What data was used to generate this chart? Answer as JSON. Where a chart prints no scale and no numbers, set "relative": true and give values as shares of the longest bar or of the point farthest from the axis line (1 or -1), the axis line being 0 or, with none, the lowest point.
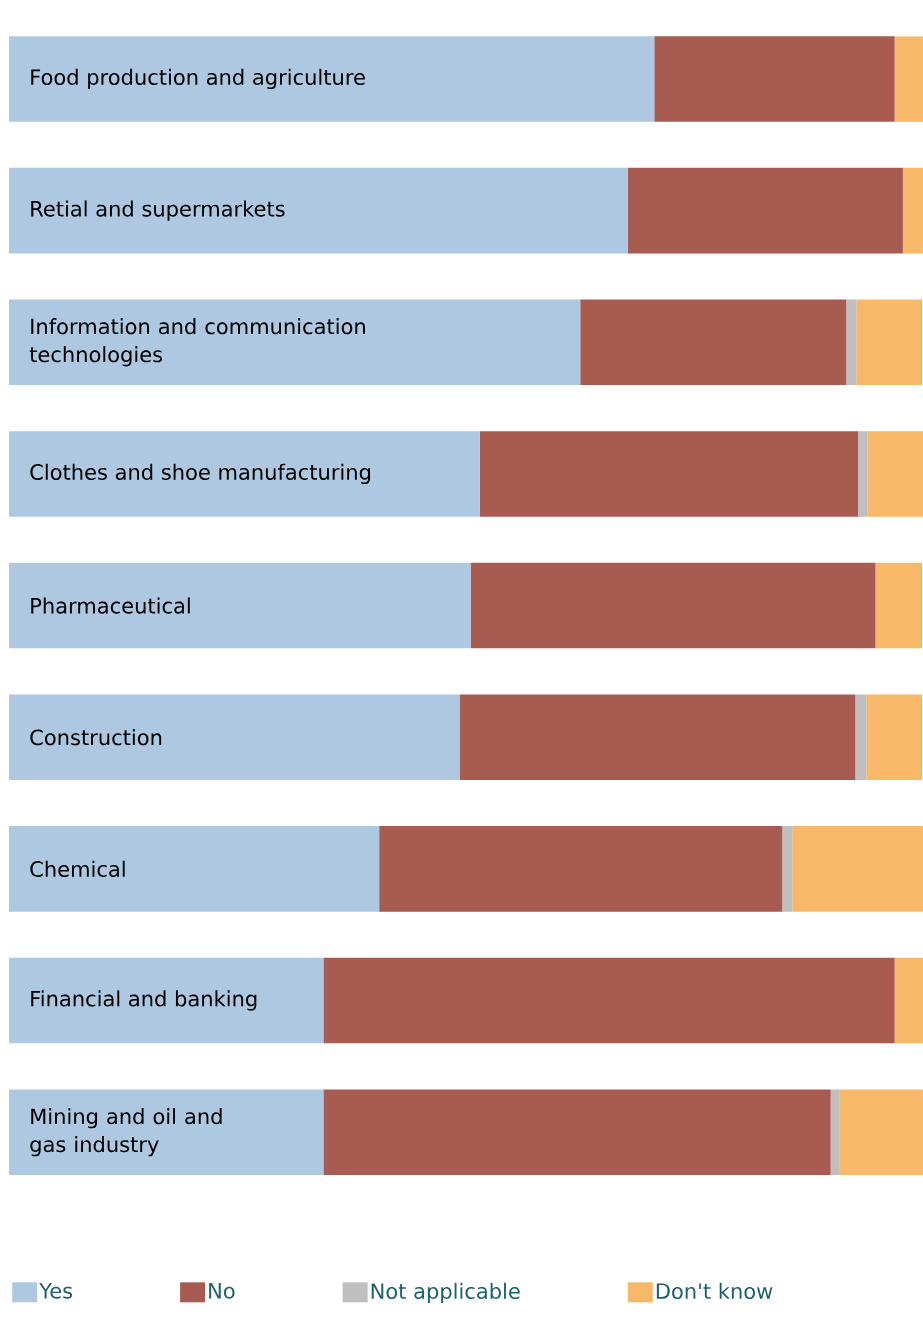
{
  "chart_data": {
    "type": "bar",
    "orientation": "horizontal",
    "stacked": true,
    "relative": true,
    "legend": "bottom",
    "categories": [
      "Food production and agriculture",
      "Retial and supermarkets",
      "Information and communication technologies",
      "Clothes and shoe manufacturing",
      "Pharmaceutical",
      "Construction",
      "Chemical",
      "Financial and banking",
      "Mining and oil and gas industry"
    ],
    "series": [
      {
        "name": "Yes",
        "color": "#adc8e0",
        "values": [
          0.706,
          0.677,
          0.625,
          0.515,
          0.505,
          0.493,
          0.405,
          0.344,
          0.344
        ]
      },
      {
        "name": "No",
        "color": "#a85b50",
        "values": [
          0.263,
          0.301,
          0.291,
          0.414,
          0.443,
          0.433,
          0.441,
          0.625,
          0.555
        ]
      },
      {
        "name": "Not applicable",
        "color": "#bfbfbf",
        "values": [
          0,
          0,
          0.011,
          0.01,
          0,
          0.012,
          0.011,
          0,
          0.01
        ]
      },
      {
        "name": "Don't know",
        "color": "#f8b86a",
        "values": [
          0.031,
          0.022,
          0.072,
          0.061,
          0.051,
          0.061,
          0.143,
          0.031,
          0.091
        ]
      }
    ]
  }
}
